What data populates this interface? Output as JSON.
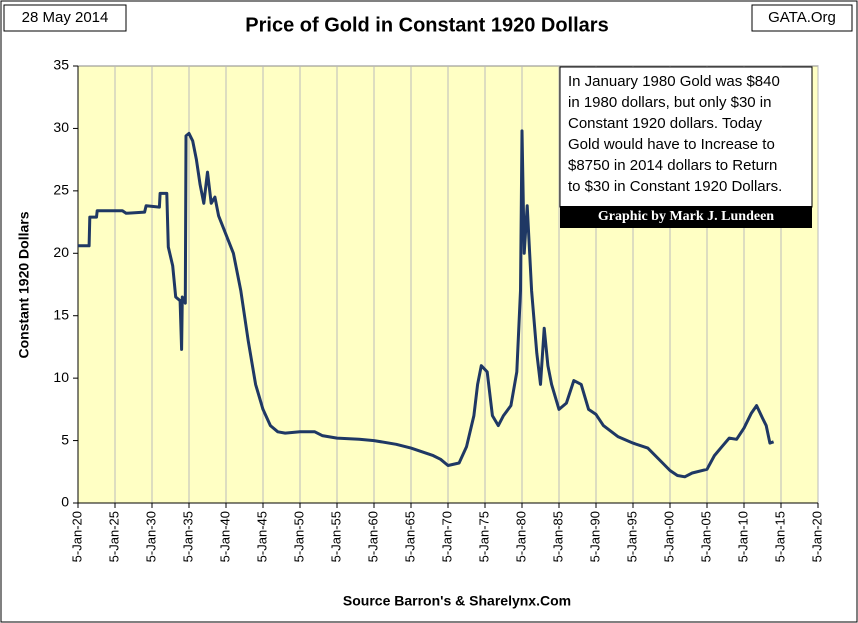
{
  "chart_data": {
    "type": "line",
    "title": "Price of Gold in Constant 1920 Dollars",
    "date_label": "28 May 2014",
    "site_label": "GATA.Org",
    "y_label": "Constant 1920 Dollars",
    "x_label": "Source Barron's & Sharelynx.Com",
    "annotation": [
      "In January 1980 Gold was $840",
      "in 1980 dollars, but only $30 in",
      "Constant 1920 dollars.  Today",
      "Gold would have to Increase to",
      "$8750 in 2014 dollars to Return",
      "to $30 in Constant 1920 Dollars."
    ],
    "credit": "Graphic by Mark J. Lundeen",
    "background": "#ffffc4",
    "grid_x": true,
    "xlim": [
      1920,
      2020
    ],
    "xticks": [
      {
        "value": 1920,
        "label": "5-Jan-20"
      },
      {
        "value": 1925,
        "label": "5-Jan-25"
      },
      {
        "value": 1930,
        "label": "5-Jan-30"
      },
      {
        "value": 1935,
        "label": "5-Jan-35"
      },
      {
        "value": 1940,
        "label": "5-Jan-40"
      },
      {
        "value": 1945,
        "label": "5-Jan-45"
      },
      {
        "value": 1950,
        "label": "5-Jan-50"
      },
      {
        "value": 1955,
        "label": "5-Jan-55"
      },
      {
        "value": 1960,
        "label": "5-Jan-60"
      },
      {
        "value": 1965,
        "label": "5-Jan-65"
      },
      {
        "value": 1970,
        "label": "5-Jan-70"
      },
      {
        "value": 1975,
        "label": "5-Jan-75"
      },
      {
        "value": 1980,
        "label": "5-Jan-80"
      },
      {
        "value": 1985,
        "label": "5-Jan-85"
      },
      {
        "value": 1990,
        "label": "5-Jan-90"
      },
      {
        "value": 1995,
        "label": "5-Jan-95"
      },
      {
        "value": 2000,
        "label": "5-Jan-00"
      },
      {
        "value": 2005,
        "label": "5-Jan-05"
      },
      {
        "value": 2010,
        "label": "5-Jan-10"
      },
      {
        "value": 2015,
        "label": "5-Jan-15"
      },
      {
        "value": 2020,
        "label": "5-Jan-20"
      }
    ],
    "ylim": [
      0,
      35
    ],
    "yticks": [
      0,
      5,
      10,
      15,
      20,
      25,
      30,
      35
    ],
    "series": [
      {
        "name": "Gold",
        "color": "#1f3864",
        "x": [
          1920,
          1921.5,
          1921.6,
          1922.5,
          1922.6,
          1926,
          1926.5,
          1929,
          1929.2,
          1931,
          1931.1,
          1932,
          1932.2,
          1932.8,
          1933.2,
          1933.8,
          1934,
          1934.1,
          1934.5,
          1934.6,
          1935,
          1935.5,
          1936,
          1936.5,
          1937,
          1937.5,
          1938,
          1938.5,
          1939,
          1940,
          1941,
          1942,
          1943,
          1944,
          1945,
          1946,
          1947,
          1948,
          1950,
          1952,
          1953,
          1955,
          1958,
          1960,
          1963,
          1965,
          1968,
          1969,
          1970,
          1971.5,
          1972.5,
          1973.5,
          1974,
          1974.5,
          1975.3,
          1976,
          1976.8,
          1977.5,
          1978.5,
          1979.3,
          1979.8,
          1980,
          1980.3,
          1980.7,
          1981.3,
          1982,
          1982.5,
          1983,
          1983.5,
          1984,
          1985,
          1986,
          1987,
          1988,
          1989,
          1990,
          1991,
          1993,
          1995,
          1997,
          1999,
          2000,
          2001,
          2002,
          2003,
          2005,
          2006,
          2007,
          2008,
          2009,
          2010,
          2011,
          2011.7,
          2012.5,
          2013,
          2013.5,
          2014
        ],
        "values": [
          20.6,
          20.6,
          22.9,
          22.9,
          23.4,
          23.4,
          23.2,
          23.3,
          23.8,
          23.7,
          24.8,
          24.8,
          20.5,
          19,
          16.5,
          16.2,
          12.3,
          16.5,
          16,
          29.4,
          29.6,
          29,
          27.5,
          25.5,
          24,
          26.5,
          24,
          24.5,
          23,
          21.5,
          20,
          17,
          13,
          9.5,
          7.5,
          6.2,
          5.7,
          5.6,
          5.7,
          5.7,
          5.4,
          5.2,
          5.1,
          5.0,
          4.7,
          4.4,
          3.8,
          3.5,
          3.0,
          3.2,
          4.5,
          7,
          9.5,
          11,
          10.5,
          7,
          6.2,
          7.0,
          7.8,
          10.5,
          17,
          29.8,
          20,
          23.8,
          17,
          12,
          9.5,
          14,
          11,
          9.5,
          7.5,
          8,
          9.8,
          9.5,
          7.5,
          7.1,
          6.2,
          5.3,
          4.8,
          4.4,
          3.2,
          2.6,
          2.2,
          2.1,
          2.4,
          2.7,
          3.8,
          4.5,
          5.2,
          5.1,
          6.0,
          7.2,
          7.8,
          6.8,
          6.2,
          4.8,
          4.9
        ]
      }
    ]
  }
}
